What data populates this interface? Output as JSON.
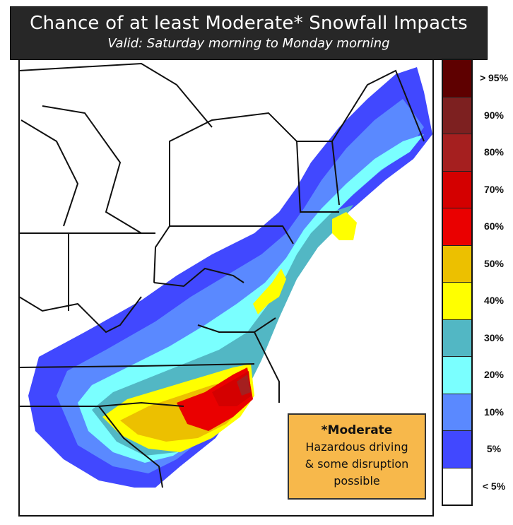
{
  "header": {
    "title": "Chance of at least Moderate* Snowfall Impacts",
    "subtitle": "Valid: Saturday morning to Monday morning"
  },
  "legend": [
    {
      "label": "> 95%",
      "color": "#5e0000"
    },
    {
      "label": "90%",
      "color": "#7d2020"
    },
    {
      "label": "80%",
      "color": "#a51f1f"
    },
    {
      "label": "70%",
      "color": "#d40000"
    },
    {
      "label": "60%",
      "color": "#ea0000"
    },
    {
      "label": "50%",
      "color": "#ecc000"
    },
    {
      "label": "40%",
      "color": "#ffff00"
    },
    {
      "label": "30%",
      "color": "#52b7c4"
    },
    {
      "label": "20%",
      "color": "#7affff"
    },
    {
      "label": "10%",
      "color": "#5a89ff"
    },
    {
      "label": "5%",
      "color": "#4148ff"
    },
    {
      "label": "< 5%",
      "color": "#ffffff"
    }
  ],
  "note": {
    "heading": "*Moderate",
    "lines": [
      "Hazardous driving",
      "& some disruption",
      "possible"
    ]
  }
}
